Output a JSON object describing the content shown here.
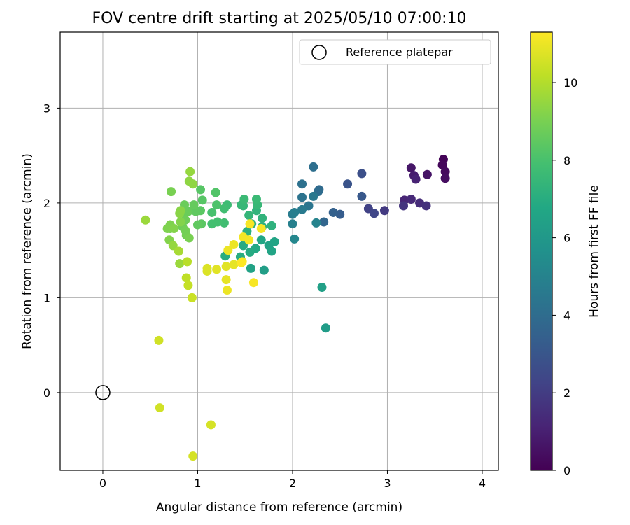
{
  "chart_data": {
    "type": "scatter",
    "title": "FOV centre drift starting at 2025/05/10 07:00:10",
    "xlabel": "Angular distance from reference (arcmin)",
    "ylabel": "Rotation from reference (arcmin)",
    "xlim": [
      -0.45,
      4.17
    ],
    "ylim": [
      -0.82,
      3.8
    ],
    "xticks": [
      0,
      1,
      2,
      3,
      4
    ],
    "yticks": [
      0,
      1,
      2,
      3
    ],
    "grid": true,
    "legend": {
      "location": "top-right",
      "entries": [
        "Reference platepar"
      ]
    },
    "reference_point": {
      "x": 0,
      "y": 0,
      "label": "Reference platepar"
    },
    "colorbar": {
      "label": "Hours from first FF file",
      "colormap": "viridis",
      "range": [
        0,
        11.3
      ],
      "ticks": [
        0,
        2,
        4,
        6,
        8,
        10
      ]
    },
    "points": [
      {
        "x": 3.59,
        "y": 2.46,
        "h": 0.1
      },
      {
        "x": 3.58,
        "y": 2.4,
        "h": 0.2
      },
      {
        "x": 3.61,
        "y": 2.33,
        "h": 0.3
      },
      {
        "x": 3.61,
        "y": 2.26,
        "h": 0.4
      },
      {
        "x": 3.42,
        "y": 2.3,
        "h": 0.6
      },
      {
        "x": 3.25,
        "y": 2.37,
        "h": 0.7
      },
      {
        "x": 3.28,
        "y": 2.29,
        "h": 0.9
      },
      {
        "x": 3.3,
        "y": 2.25,
        "h": 1.1
      },
      {
        "x": 3.18,
        "y": 2.03,
        "h": 1.2
      },
      {
        "x": 3.25,
        "y": 2.04,
        "h": 1.3
      },
      {
        "x": 3.34,
        "y": 2.0,
        "h": 1.4
      },
      {
        "x": 3.41,
        "y": 1.97,
        "h": 1.6
      },
      {
        "x": 3.17,
        "y": 1.97,
        "h": 1.7
      },
      {
        "x": 2.97,
        "y": 1.92,
        "h": 1.9
      },
      {
        "x": 2.8,
        "y": 1.94,
        "h": 2.2
      },
      {
        "x": 2.86,
        "y": 1.89,
        "h": 2.4
      },
      {
        "x": 2.73,
        "y": 2.31,
        "h": 2.7
      },
      {
        "x": 2.58,
        "y": 2.2,
        "h": 2.9
      },
      {
        "x": 2.73,
        "y": 2.07,
        "h": 3.1
      },
      {
        "x": 2.5,
        "y": 1.88,
        "h": 3.3
      },
      {
        "x": 2.43,
        "y": 1.9,
        "h": 3.5
      },
      {
        "x": 2.33,
        "y": 1.8,
        "h": 3.7
      },
      {
        "x": 2.28,
        "y": 2.14,
        "h": 3.9
      },
      {
        "x": 2.27,
        "y": 2.12,
        "h": 4.0
      },
      {
        "x": 2.22,
        "y": 2.38,
        "h": 4.1
      },
      {
        "x": 2.1,
        "y": 2.2,
        "h": 4.2
      },
      {
        "x": 2.1,
        "y": 2.06,
        "h": 4.3
      },
      {
        "x": 2.17,
        "y": 1.97,
        "h": 4.4
      },
      {
        "x": 2.22,
        "y": 2.07,
        "h": 4.5
      },
      {
        "x": 2.1,
        "y": 1.93,
        "h": 4.6
      },
      {
        "x": 2.0,
        "y": 1.88,
        "h": 4.7
      },
      {
        "x": 2.02,
        "y": 1.9,
        "h": 4.8
      },
      {
        "x": 2.0,
        "y": 1.78,
        "h": 4.9
      },
      {
        "x": 2.25,
        "y": 1.79,
        "h": 5.0
      },
      {
        "x": 2.02,
        "y": 1.62,
        "h": 5.2
      },
      {
        "x": 2.35,
        "y": 0.68,
        "h": 6.2
      },
      {
        "x": 2.31,
        "y": 1.11,
        "h": 6.4
      },
      {
        "x": 1.7,
        "y": 1.29,
        "h": 6.3
      },
      {
        "x": 1.56,
        "y": 1.31,
        "h": 6.5
      },
      {
        "x": 1.75,
        "y": 1.55,
        "h": 6.5
      },
      {
        "x": 1.78,
        "y": 1.49,
        "h": 6.6
      },
      {
        "x": 1.81,
        "y": 1.59,
        "h": 6.6
      },
      {
        "x": 1.67,
        "y": 1.61,
        "h": 6.7
      },
      {
        "x": 1.61,
        "y": 1.52,
        "h": 6.8
      },
      {
        "x": 1.55,
        "y": 1.48,
        "h": 6.9
      },
      {
        "x": 1.48,
        "y": 1.55,
        "h": 6.9
      },
      {
        "x": 1.45,
        "y": 1.43,
        "h": 7.0
      },
      {
        "x": 1.29,
        "y": 1.44,
        "h": 7.0
      },
      {
        "x": 1.52,
        "y": 1.7,
        "h": 7.1
      },
      {
        "x": 1.57,
        "y": 1.78,
        "h": 7.1
      },
      {
        "x": 1.68,
        "y": 1.75,
        "h": 7.2
      },
      {
        "x": 1.78,
        "y": 1.76,
        "h": 7.2
      },
      {
        "x": 1.68,
        "y": 1.84,
        "h": 7.3
      },
      {
        "x": 1.62,
        "y": 1.92,
        "h": 7.3
      },
      {
        "x": 1.54,
        "y": 1.87,
        "h": 7.4
      },
      {
        "x": 1.48,
        "y": 1.97,
        "h": 7.4
      },
      {
        "x": 1.46,
        "y": 1.98,
        "h": 7.5
      },
      {
        "x": 1.63,
        "y": 1.98,
        "h": 7.5
      },
      {
        "x": 1.62,
        "y": 2.04,
        "h": 7.6
      },
      {
        "x": 1.49,
        "y": 2.04,
        "h": 7.6
      },
      {
        "x": 1.31,
        "y": 1.98,
        "h": 7.7
      },
      {
        "x": 1.28,
        "y": 1.94,
        "h": 7.8
      },
      {
        "x": 1.28,
        "y": 1.79,
        "h": 7.8
      },
      {
        "x": 1.21,
        "y": 1.8,
        "h": 7.9
      },
      {
        "x": 1.15,
        "y": 1.78,
        "h": 7.9
      },
      {
        "x": 1.15,
        "y": 1.9,
        "h": 8.0
      },
      {
        "x": 1.2,
        "y": 1.98,
        "h": 8.1
      },
      {
        "x": 1.19,
        "y": 2.11,
        "h": 8.2
      },
      {
        "x": 1.03,
        "y": 2.14,
        "h": 8.3
      },
      {
        "x": 1.05,
        "y": 2.03,
        "h": 8.3
      },
      {
        "x": 1.03,
        "y": 1.92,
        "h": 8.4
      },
      {
        "x": 1.04,
        "y": 1.78,
        "h": 8.4
      },
      {
        "x": 1.0,
        "y": 1.77,
        "h": 8.5
      },
      {
        "x": 0.98,
        "y": 1.91,
        "h": 8.5
      },
      {
        "x": 0.96,
        "y": 1.98,
        "h": 8.6
      },
      {
        "x": 0.9,
        "y": 1.91,
        "h": 8.6
      },
      {
        "x": 0.86,
        "y": 1.98,
        "h": 8.7
      },
      {
        "x": 0.88,
        "y": 1.9,
        "h": 8.7
      },
      {
        "x": 0.87,
        "y": 1.82,
        "h": 8.8
      },
      {
        "x": 0.84,
        "y": 1.75,
        "h": 8.8
      },
      {
        "x": 0.87,
        "y": 1.71,
        "h": 8.9
      },
      {
        "x": 0.88,
        "y": 1.66,
        "h": 8.9
      },
      {
        "x": 0.91,
        "y": 1.63,
        "h": 9.0
      },
      {
        "x": 0.71,
        "y": 1.73,
        "h": 9.0
      },
      {
        "x": 0.68,
        "y": 1.73,
        "h": 9.1
      },
      {
        "x": 0.71,
        "y": 1.77,
        "h": 9.1
      },
      {
        "x": 0.75,
        "y": 1.73,
        "h": 9.2
      },
      {
        "x": 0.82,
        "y": 1.8,
        "h": 9.2
      },
      {
        "x": 0.81,
        "y": 1.89,
        "h": 9.3
      },
      {
        "x": 0.82,
        "y": 1.92,
        "h": 9.3
      },
      {
        "x": 0.91,
        "y": 2.23,
        "h": 9.4
      },
      {
        "x": 0.95,
        "y": 2.2,
        "h": 9.4
      },
      {
        "x": 0.92,
        "y": 2.33,
        "h": 9.5
      },
      {
        "x": 0.72,
        "y": 2.12,
        "h": 9.0
      },
      {
        "x": 0.7,
        "y": 1.61,
        "h": 9.2
      },
      {
        "x": 0.74,
        "y": 1.55,
        "h": 9.5
      },
      {
        "x": 0.81,
        "y": 1.36,
        "h": 9.6
      },
      {
        "x": 0.45,
        "y": 1.82,
        "h": 9.6
      },
      {
        "x": 0.8,
        "y": 1.49,
        "h": 9.8
      },
      {
        "x": 0.89,
        "y": 1.38,
        "h": 10.1
      },
      {
        "x": 0.88,
        "y": 1.21,
        "h": 10.2
      },
      {
        "x": 0.9,
        "y": 1.13,
        "h": 10.3
      },
      {
        "x": 0.94,
        "y": 1.0,
        "h": 10.4
      },
      {
        "x": 0.59,
        "y": 0.55,
        "h": 10.5
      },
      {
        "x": 0.6,
        "y": -0.16,
        "h": 10.5
      },
      {
        "x": 1.14,
        "y": -0.34,
        "h": 10.6
      },
      {
        "x": 0.95,
        "y": -0.67,
        "h": 10.6
      },
      {
        "x": 1.1,
        "y": 1.31,
        "h": 10.7
      },
      {
        "x": 1.1,
        "y": 1.28,
        "h": 10.7
      },
      {
        "x": 1.2,
        "y": 1.3,
        "h": 10.8
      },
      {
        "x": 1.3,
        "y": 1.33,
        "h": 10.8
      },
      {
        "x": 1.38,
        "y": 1.35,
        "h": 10.9
      },
      {
        "x": 1.3,
        "y": 1.19,
        "h": 10.9
      },
      {
        "x": 1.31,
        "y": 1.08,
        "h": 11.0
      },
      {
        "x": 1.32,
        "y": 1.5,
        "h": 11.0
      },
      {
        "x": 1.38,
        "y": 1.56,
        "h": 11.0
      },
      {
        "x": 1.47,
        "y": 1.38,
        "h": 11.1
      },
      {
        "x": 1.48,
        "y": 1.64,
        "h": 11.1
      },
      {
        "x": 1.54,
        "y": 1.61,
        "h": 11.1
      },
      {
        "x": 1.55,
        "y": 1.78,
        "h": 11.2
      },
      {
        "x": 1.67,
        "y": 1.73,
        "h": 11.2
      },
      {
        "x": 1.59,
        "y": 1.16,
        "h": 11.2
      },
      {
        "x": 1.46,
        "y": 1.37,
        "h": 11.3
      }
    ]
  }
}
